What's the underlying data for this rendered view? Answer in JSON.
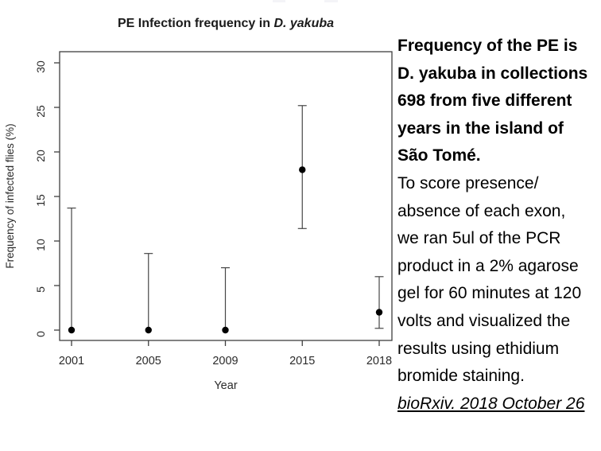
{
  "chart": {
    "title_prefix": "PE Infection frequency in ",
    "title_species": "D. yakuba"
  },
  "chart_data": {
    "type": "scatter",
    "title": "PE Infection frequency in D. yakuba",
    "xlabel": "Year",
    "ylabel": "Frequency of infected flies (%)",
    "categories": [
      "2001",
      "2005",
      "2009",
      "2015",
      "2018"
    ],
    "series": [
      {
        "name": "PE infection frequency",
        "values": [
          0,
          0,
          0,
          18,
          2
        ],
        "ci_low": [
          0,
          0,
          0,
          11.4,
          0.2
        ],
        "ci_high": [
          13.7,
          8.6,
          7.0,
          25.2,
          6.0
        ]
      }
    ],
    "ylim": [
      0,
      30
    ],
    "yticks": [
      0,
      5,
      10,
      15,
      20,
      25,
      30
    ],
    "grid": false,
    "legend": "none",
    "categories_equally_spaced": true,
    "point_color": "#000000",
    "errorbar_color": "#474747",
    "axis_color": "#3f3f3f",
    "label_color": "#2b2b2b"
  },
  "caption": {
    "bold_lines": [
      "Frequency of the PE is",
      "D. yakuba in collections",
      "698 from five different",
      "years in the island of",
      "São Tomé."
    ],
    "normal_lines": [
      "To score presence/",
      "absence of each exon,",
      "we ran 5ul of the PCR",
      "product in a 2% agarose",
      "gel for 60 minutes at 120",
      "volts and visualized the",
      "results using ethidium",
      "bromide staining."
    ],
    "citation": "bioRxiv. 2018 October 26"
  }
}
